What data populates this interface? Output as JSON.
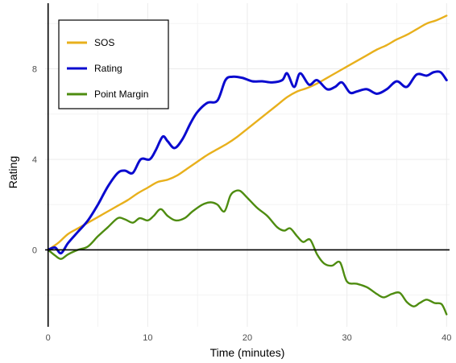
{
  "chart_data": {
    "type": "line",
    "title": "",
    "xlabel": "Time (minutes)",
    "ylabel": "Rating",
    "xlim": [
      -0.3,
      40.3
    ],
    "ylim": [
      -3.4,
      10.9
    ],
    "x_ticks": [
      0,
      10,
      20,
      30,
      40
    ],
    "y_ticks": [
      0,
      4,
      8
    ],
    "grid": true,
    "legend_position": "top-left",
    "series": [
      {
        "name": "SOS",
        "color": "#E8B01C",
        "x": [
          0,
          1,
          2,
          3,
          4,
          5,
          6,
          7,
          8,
          9,
          10,
          11,
          12,
          13,
          14,
          15,
          16,
          17,
          18,
          19,
          20,
          21,
          22,
          23,
          24,
          25,
          26,
          27,
          28,
          29,
          30,
          31,
          32,
          33,
          34,
          35,
          36,
          37,
          38,
          39,
          40
        ],
        "values": [
          0.0,
          0.3,
          0.7,
          0.95,
          1.2,
          1.45,
          1.7,
          1.95,
          2.2,
          2.5,
          2.75,
          3.0,
          3.1,
          3.3,
          3.6,
          3.9,
          4.2,
          4.45,
          4.7,
          5.0,
          5.35,
          5.7,
          6.05,
          6.4,
          6.75,
          7.0,
          7.15,
          7.35,
          7.6,
          7.85,
          8.1,
          8.35,
          8.6,
          8.85,
          9.05,
          9.3,
          9.5,
          9.75,
          10.0,
          10.15,
          10.35
        ]
      },
      {
        "name": "Rating",
        "color": "#0A0ACF",
        "x": [
          0,
          0.7,
          1.3,
          2,
          3,
          4,
          5,
          6,
          7,
          7.7,
          8.5,
          9.3,
          10.2,
          10.8,
          11.5,
          12,
          12.7,
          13.5,
          14.3,
          15,
          16,
          17,
          17.8,
          18.5,
          19.5,
          20.5,
          21.5,
          22.5,
          23.5,
          24,
          24.7,
          25.3,
          26.2,
          27,
          28,
          28.8,
          29.5,
          30.3,
          31,
          32,
          33,
          34,
          35,
          36,
          37,
          38,
          38.7,
          39.4,
          40
        ],
        "values": [
          0.0,
          0.1,
          -0.15,
          0.3,
          0.8,
          1.3,
          2.0,
          2.8,
          3.4,
          3.5,
          3.4,
          4.0,
          4.0,
          4.4,
          5.0,
          4.8,
          4.5,
          4.9,
          5.6,
          6.1,
          6.5,
          6.6,
          7.5,
          7.65,
          7.6,
          7.45,
          7.45,
          7.4,
          7.5,
          7.8,
          7.2,
          7.8,
          7.3,
          7.5,
          7.1,
          7.2,
          7.4,
          6.95,
          7.0,
          7.1,
          6.9,
          7.1,
          7.45,
          7.2,
          7.75,
          7.7,
          7.85,
          7.85,
          7.5
        ]
      },
      {
        "name": "Point Margin",
        "color": "#4E8C10",
        "x": [
          0,
          0.7,
          1.3,
          2,
          3,
          4,
          5,
          6,
          7,
          7.7,
          8.5,
          9.2,
          10,
          10.6,
          11.3,
          12,
          12.8,
          13.7,
          14.5,
          15.5,
          16.3,
          17,
          17.7,
          18.3,
          18.8,
          19.3,
          20,
          21,
          22,
          23,
          23.7,
          24.3,
          25,
          25.6,
          26.3,
          27,
          27.7,
          28.5,
          29.3,
          30,
          31,
          32,
          33,
          33.7,
          34.5,
          35.3,
          36,
          36.7,
          37.3,
          38,
          38.8,
          39.5,
          40
        ],
        "values": [
          0.0,
          -0.25,
          -0.4,
          -0.2,
          0.0,
          0.15,
          0.6,
          1.0,
          1.4,
          1.35,
          1.2,
          1.4,
          1.3,
          1.5,
          1.8,
          1.5,
          1.3,
          1.4,
          1.7,
          2.0,
          2.1,
          2.0,
          1.7,
          2.4,
          2.6,
          2.6,
          2.3,
          1.85,
          1.5,
          1.0,
          0.85,
          0.95,
          0.6,
          0.35,
          0.45,
          -0.2,
          -0.6,
          -0.7,
          -0.55,
          -1.4,
          -1.5,
          -1.65,
          -1.95,
          -2.1,
          -1.95,
          -1.9,
          -2.3,
          -2.5,
          -2.35,
          -2.2,
          -2.35,
          -2.4,
          -2.85
        ]
      }
    ]
  }
}
